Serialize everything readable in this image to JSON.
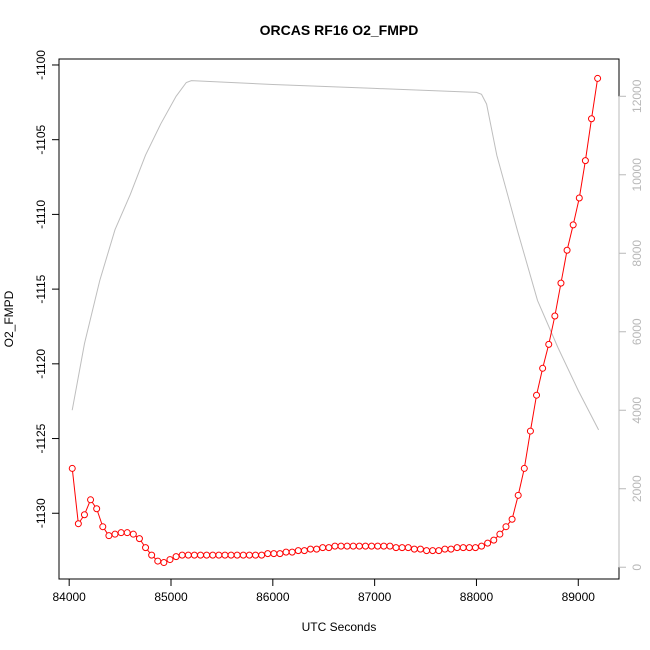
{
  "chart_data": {
    "type": "line",
    "title": "ORCAS RF16 O2_FMPD",
    "xlabel": "UTC Seconds",
    "ylabel": "O2_FMPD",
    "xlim": [
      83900,
      89400
    ],
    "ylim": [
      -1134.4,
      -1099.6
    ],
    "y2lim": [
      -300,
      12950
    ],
    "x_ticks": [
      84000,
      85000,
      86000,
      87000,
      88000,
      89000
    ],
    "y_ticks": [
      -1130,
      -1125,
      -1120,
      -1115,
      -1110,
      -1105,
      -1100
    ],
    "y2_ticks": [
      0,
      2000,
      4000,
      6000,
      8000,
      10000,
      12000
    ],
    "colors": {
      "o2": "#ff0000",
      "secondary": "#bebebe",
      "axis": "#000000",
      "axis2": "#b8b8b8"
    },
    "series": [
      {
        "axis": "left",
        "style": "line-with-circles",
        "x": [
          84030,
          84090,
          84150,
          84210,
          84270,
          84330,
          84390,
          84450,
          84510,
          84570,
          84630,
          84690,
          84750,
          84810,
          84870,
          84930,
          84990,
          85050,
          85110,
          85170,
          85230,
          85290,
          85350,
          85410,
          85470,
          85530,
          85590,
          85650,
          85710,
          85770,
          85830,
          85890,
          85950,
          86010,
          86070,
          86130,
          86190,
          86250,
          86310,
          86370,
          86430,
          86490,
          86550,
          86610,
          86670,
          86730,
          86790,
          86850,
          86910,
          86970,
          87030,
          87090,
          87150,
          87210,
          87270,
          87330,
          87390,
          87450,
          87510,
          87570,
          87630,
          87690,
          87750,
          87810,
          87870,
          87930,
          87990,
          88050,
          88110,
          88170,
          88230,
          88290,
          88350,
          88410,
          88470,
          88530,
          88590,
          88650,
          88710,
          88770,
          88830,
          88890,
          88950,
          89010,
          89070,
          89130,
          89190
        ],
        "y": [
          -1127.0,
          -1130.7,
          -1130.1,
          -1129.1,
          -1129.7,
          -1130.9,
          -1131.5,
          -1131.4,
          -1131.3,
          -1131.3,
          -1131.4,
          -1131.7,
          -1132.3,
          -1132.8,
          -1133.2,
          -1133.3,
          -1133.1,
          -1132.9,
          -1132.8,
          -1132.8,
          -1132.8,
          -1132.8,
          -1132.8,
          -1132.8,
          -1132.8,
          -1132.8,
          -1132.8,
          -1132.8,
          -1132.8,
          -1132.8,
          -1132.8,
          -1132.8,
          -1132.7,
          -1132.7,
          -1132.7,
          -1132.6,
          -1132.6,
          -1132.5,
          -1132.5,
          -1132.4,
          -1132.4,
          -1132.3,
          -1132.3,
          -1132.2,
          -1132.2,
          -1132.2,
          -1132.2,
          -1132.2,
          -1132.2,
          -1132.2,
          -1132.2,
          -1132.2,
          -1132.2,
          -1132.3,
          -1132.3,
          -1132.3,
          -1132.4,
          -1132.4,
          -1132.5,
          -1132.5,
          -1132.5,
          -1132.4,
          -1132.4,
          -1132.3,
          -1132.3,
          -1132.3,
          -1132.3,
          -1132.2,
          -1132.0,
          -1131.8,
          -1131.4,
          -1130.9,
          -1130.4,
          -1128.8,
          -1127.0,
          -1124.5,
          -1122.1,
          -1120.3,
          -1118.7,
          -1116.8,
          -1114.6,
          -1112.4,
          -1110.7,
          -1108.9,
          -1106.4,
          -1103.6,
          -1100.9
        ]
      },
      {
        "axis": "right",
        "style": "line",
        "x": [
          84030,
          84150,
          84300,
          84450,
          84600,
          84750,
          84900,
          85050,
          85150,
          85200,
          86000,
          87000,
          88000,
          88050,
          88100,
          88200,
          88400,
          88600,
          88800,
          89000,
          89200
        ],
        "y": [
          4000,
          5700,
          7300,
          8600,
          9500,
          10500,
          11300,
          12000,
          12350,
          12400,
          12300,
          12200,
          12100,
          12050,
          11800,
          10500,
          8600,
          6800,
          5600,
          4500,
          3500
        ]
      }
    ]
  }
}
